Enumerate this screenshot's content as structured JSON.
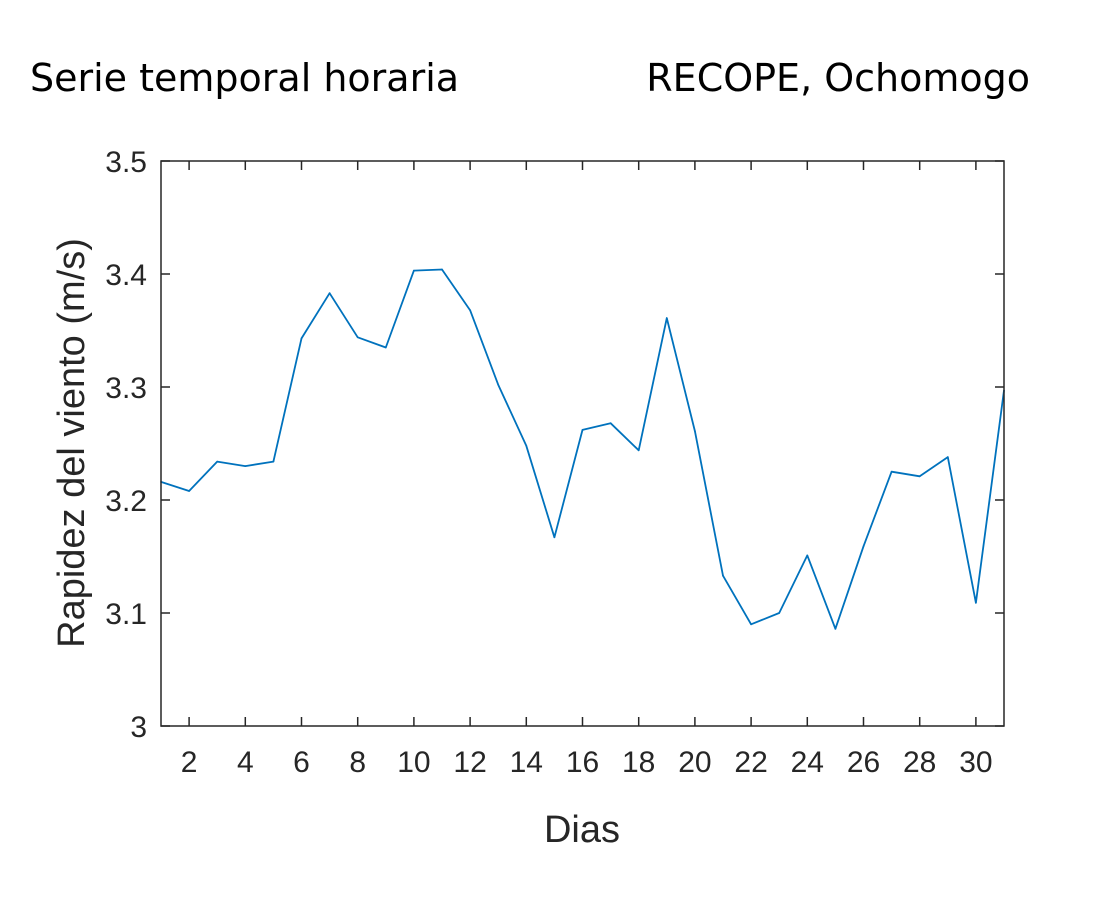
{
  "titles": {
    "left": "Serie temporal horaria",
    "right": "RECOPE, Ochomogo"
  },
  "chart_data": {
    "type": "line",
    "xlabel": "Dias",
    "ylabel": "Rapidez del viento (m/s)",
    "xlim": [
      1,
      31
    ],
    "ylim": [
      3,
      3.5
    ],
    "xticks": [
      2,
      4,
      6,
      8,
      10,
      12,
      14,
      16,
      18,
      20,
      22,
      24,
      26,
      28,
      30
    ],
    "yticks": [
      3,
      3.1,
      3.2,
      3.3,
      3.4,
      3.5
    ],
    "ytick_labels": [
      "3",
      "3.1",
      "3.2",
      "3.3",
      "3.4",
      "3.5"
    ],
    "grid": false,
    "line_color": "#0072BD",
    "x": [
      1,
      2,
      3,
      4,
      5,
      6,
      7,
      8,
      9,
      10,
      11,
      12,
      13,
      14,
      15,
      16,
      17,
      18,
      19,
      20,
      21,
      22,
      23,
      24,
      25,
      26,
      27,
      28,
      29,
      30,
      31
    ],
    "values": [
      3.216,
      3.208,
      3.234,
      3.23,
      3.234,
      3.343,
      3.383,
      3.344,
      3.335,
      3.403,
      3.404,
      3.368,
      3.302,
      3.248,
      3.167,
      3.262,
      3.268,
      3.244,
      3.361,
      3.261,
      3.133,
      3.09,
      3.1,
      3.151,
      3.086,
      3.159,
      3.225,
      3.221,
      3.238,
      3.109,
      3.297
    ]
  }
}
